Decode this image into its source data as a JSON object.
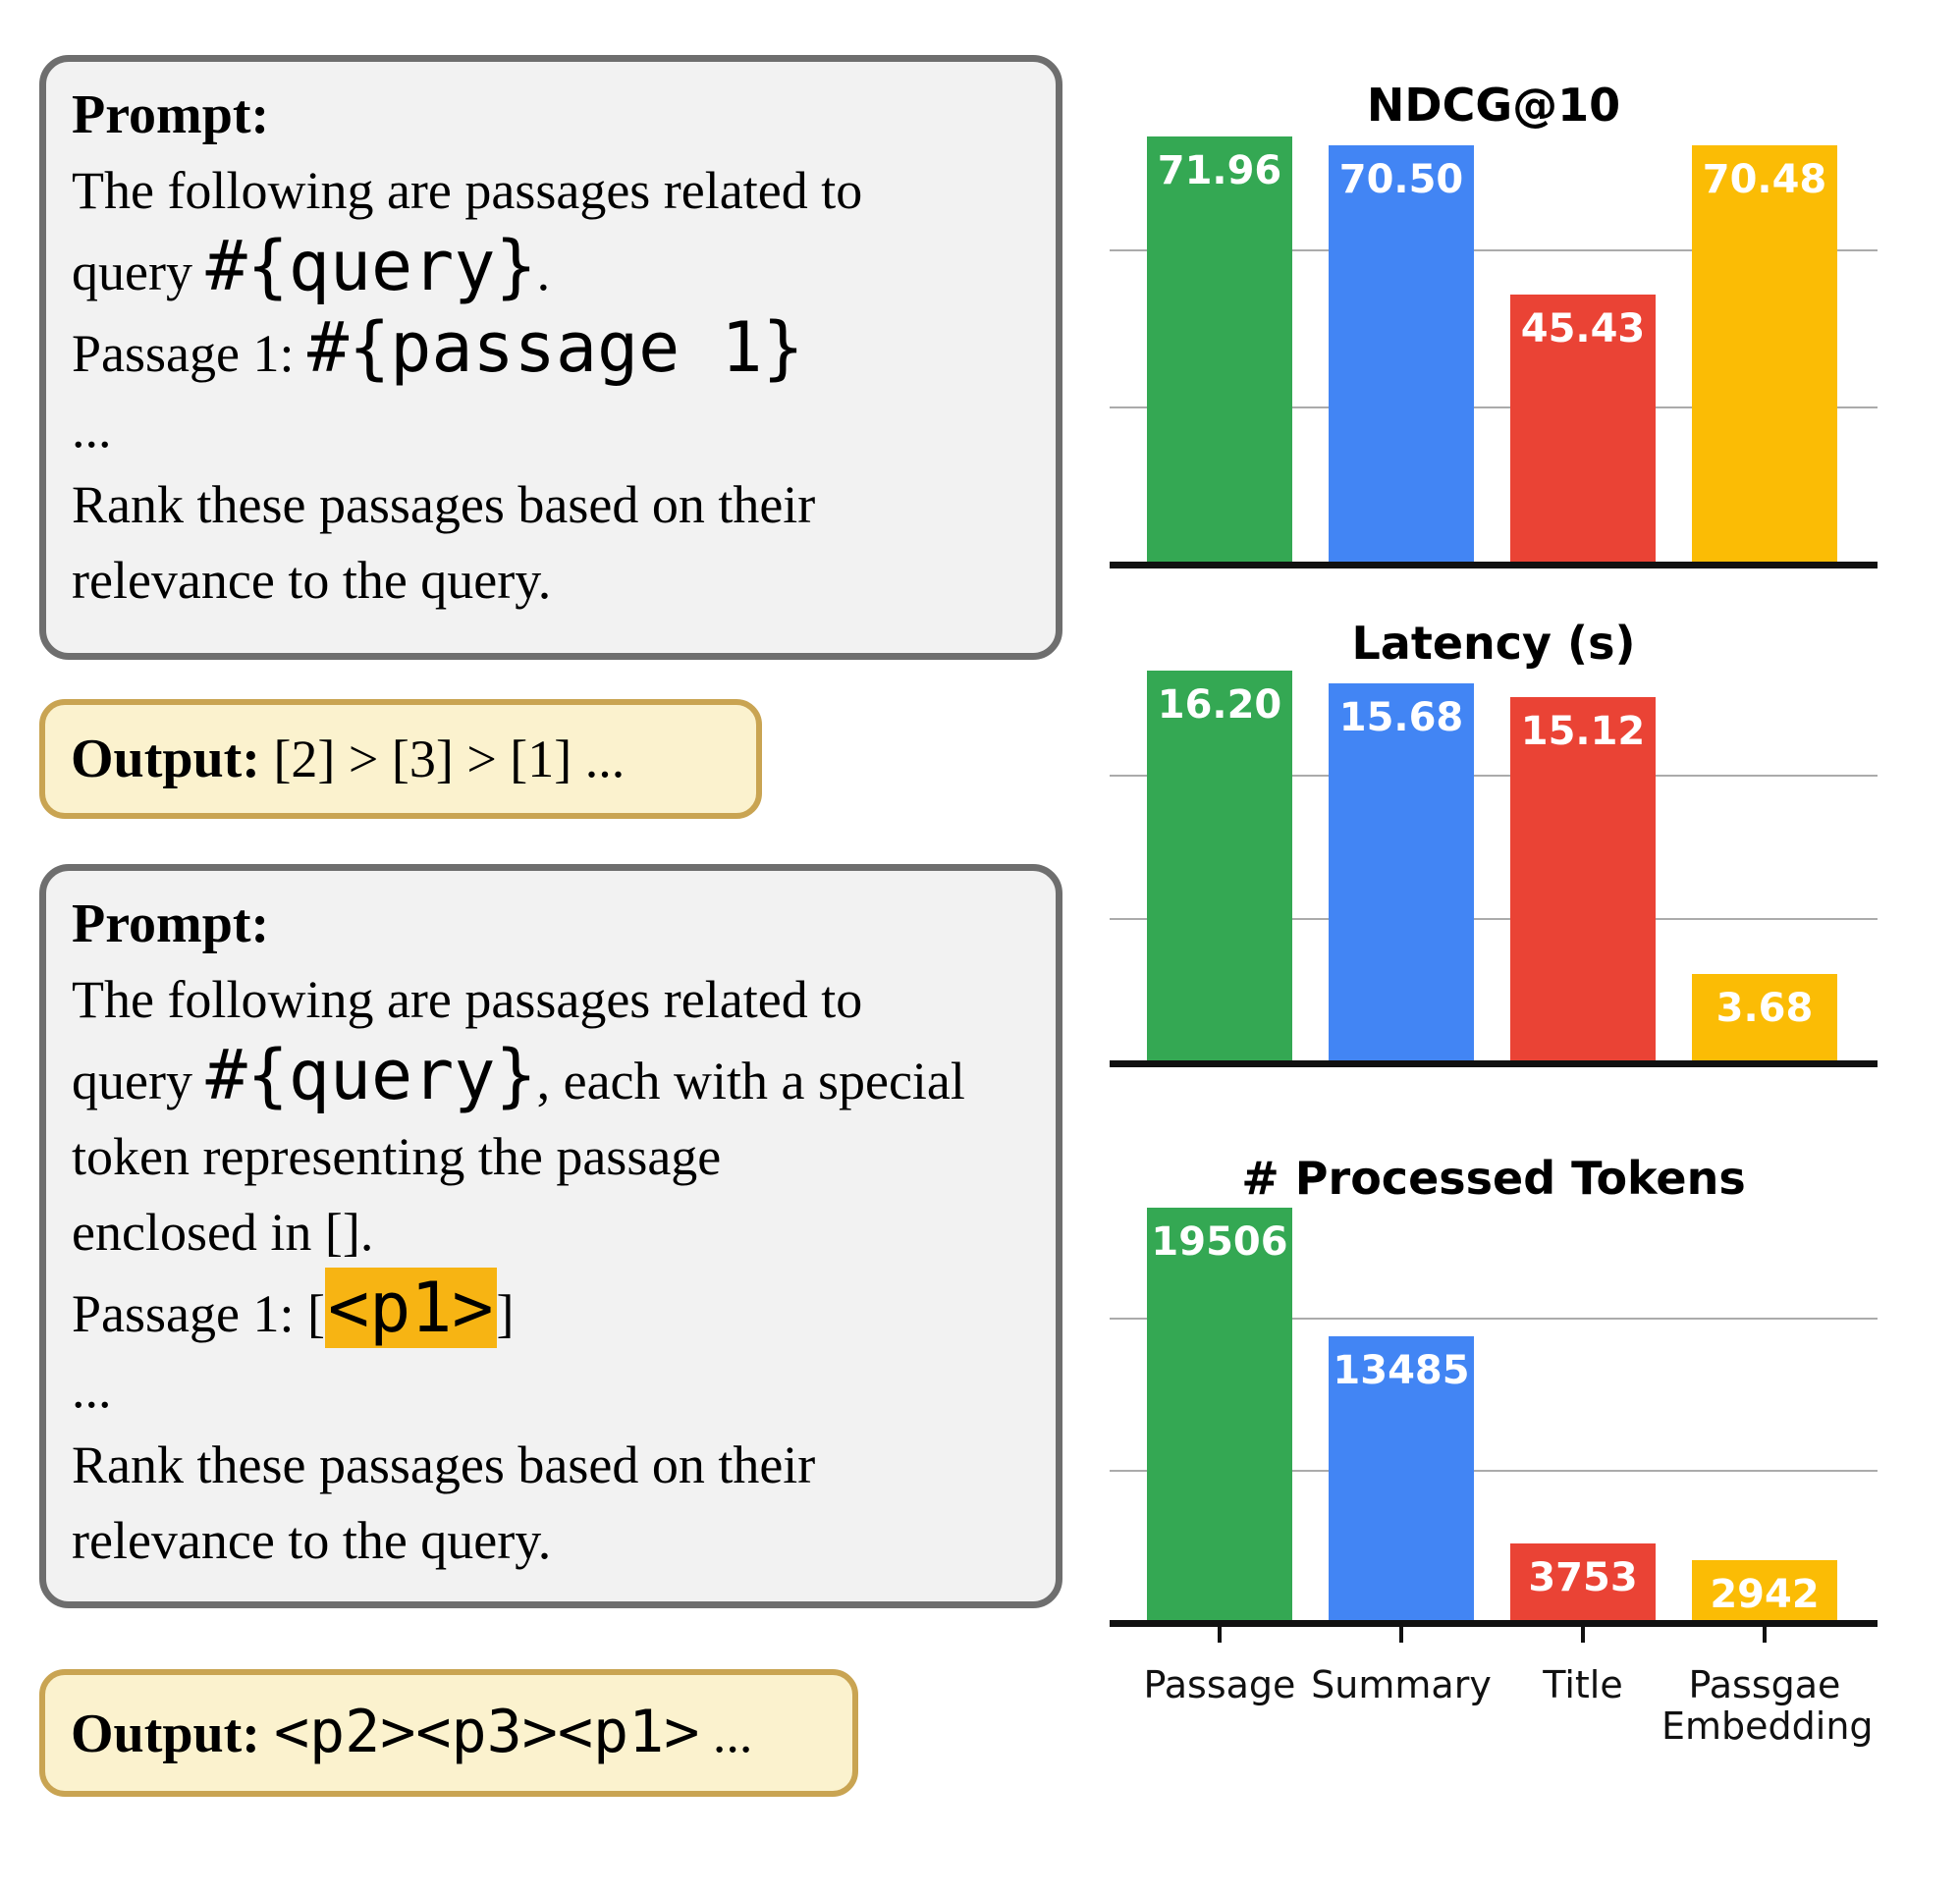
{
  "palette": {
    "green": "#34A853",
    "blue": "#4285F4",
    "red": "#EA4335",
    "yellow": "#FBBC05",
    "token_highlight": "#F7B413",
    "prompt_box_bg": "#F2F2F2",
    "prompt_box_border": "#6E6E6E",
    "output_box_bg": "#FBF2CE",
    "output_box_border": "#C9A452",
    "gridline": "#ABABAB",
    "axis": "#111111",
    "bar_value_text": "#FFFFFF"
  },
  "panels": {
    "prompt1": {
      "lines": [
        [
          {
            "t": "Prompt:",
            "s": "b"
          }
        ],
        [
          {
            "t": "The following are passages related to",
            "s": "r"
          }
        ],
        [
          {
            "t": "query ",
            "s": "r"
          },
          {
            "t": "#{query}",
            "s": "m"
          },
          {
            "t": ".",
            "s": "r"
          }
        ],
        [
          {
            "t": "Passage 1: ",
            "s": "r"
          },
          {
            "t": "#{passage 1}",
            "s": "m"
          }
        ],
        [
          {
            "t": "...",
            "s": "r"
          }
        ],
        [
          {
            "t": "Rank these passages based on their",
            "s": "r"
          }
        ],
        [
          {
            "t": "relevance to the query.",
            "s": "r"
          }
        ]
      ]
    },
    "output1": {
      "lines": [
        [
          {
            "t": "Output:",
            "s": "b"
          },
          {
            "t": " [2] > [3] > [1] ...",
            "s": "r"
          }
        ]
      ]
    },
    "prompt2": {
      "lines": [
        [
          {
            "t": "Prompt:",
            "s": "b"
          }
        ],
        [
          {
            "t": "The following are passages related to",
            "s": "r"
          }
        ],
        [
          {
            "t": "query ",
            "s": "r"
          },
          {
            "t": "#{query}",
            "s": "m"
          },
          {
            "t": ", each with a special",
            "s": "r"
          }
        ],
        [
          {
            "t": "token representing the passage",
            "s": "r"
          }
        ],
        [
          {
            "t": "enclosed in [].",
            "s": "r"
          }
        ],
        [
          {
            "t": "Passage 1: [",
            "s": "r"
          },
          {
            "t": "<p1>",
            "s": "h"
          },
          {
            "t": "]",
            "s": "r"
          }
        ],
        [
          {
            "t": "...",
            "s": "r"
          }
        ],
        [
          {
            "t": "Rank these passages based on their",
            "s": "r"
          }
        ],
        [
          {
            "t": "relevance to the query.",
            "s": "r"
          }
        ]
      ]
    },
    "output2": {
      "lines": [
        [
          {
            "t": "Output: ",
            "s": "b"
          },
          {
            "t": "<p2><p3><p1>",
            "s": "k"
          },
          {
            "t": " ...",
            "s": "r"
          }
        ]
      ]
    }
  },
  "chart_data": [
    {
      "id": "ndcg",
      "type": "bar",
      "title": "NDCG@10",
      "categories": [
        "Passage",
        "Summary",
        "Title",
        "Passgae Embedding"
      ],
      "values": [
        71.96,
        70.5,
        45.43,
        70.48
      ],
      "labels": [
        "71.96",
        "70.50",
        "45.43",
        "70.48"
      ],
      "bar_colors": [
        "#34A853",
        "#4285F4",
        "#EA4335",
        "#FBBC05"
      ],
      "ylim": [
        0,
        79.16
      ],
      "gridline_values": [
        26.39,
        52.77
      ],
      "grid": true,
      "show_x_labels": false,
      "legend_position": "none"
    },
    {
      "id": "latency",
      "type": "bar",
      "title": "Latency (s)",
      "categories": [
        "Passage",
        "Summary",
        "Title",
        "Passgae Embedding"
      ],
      "values": [
        16.2,
        15.68,
        15.12,
        3.68
      ],
      "labels": [
        "16.20",
        "15.68",
        "15.12",
        "3.68"
      ],
      "bar_colors": [
        "#34A853",
        "#4285F4",
        "#EA4335",
        "#FBBC05"
      ],
      "ylim": [
        0,
        17.82
      ],
      "gridline_values": [
        5.94,
        11.88
      ],
      "grid": true,
      "show_x_labels": false,
      "legend_position": "none"
    },
    {
      "id": "tokens",
      "type": "bar",
      "title": "# Processed Tokens",
      "categories": [
        "Passage",
        "Summary",
        "Title",
        "Passgae Embedding"
      ],
      "values": [
        19506,
        13485,
        3753,
        2942
      ],
      "labels": [
        "19506",
        "13485",
        "3753",
        "2942"
      ],
      "bar_colors": [
        "#34A853",
        "#4285F4",
        "#EA4335",
        "#FBBC05"
      ],
      "ylim": [
        0,
        21457
      ],
      "gridline_values": [
        7152,
        14305
      ],
      "grid": true,
      "show_x_labels": true,
      "legend_position": "none"
    }
  ]
}
